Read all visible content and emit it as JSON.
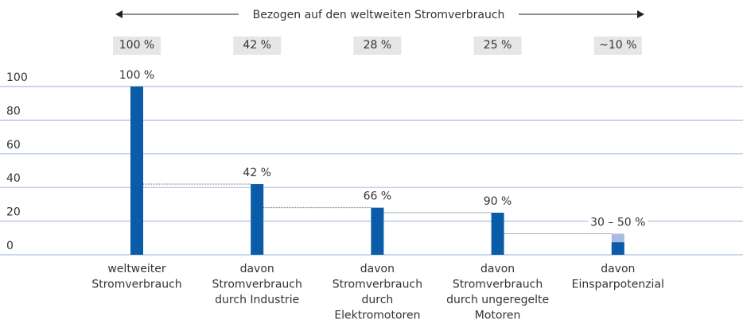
{
  "chart_data": {
    "type": "bar",
    "header": "Bezogen auf den weltweiten Stromverbrauch",
    "global_labels": [
      "100 %",
      "42 %",
      "28 %",
      "25 %",
      "~10 %"
    ],
    "share_labels": [
      "100 %",
      "42 %",
      "66 %",
      "90 %",
      "30 – 50 %"
    ],
    "categories": [
      [
        "weltweiter",
        "Stromverbrauch"
      ],
      [
        "davon",
        "Stromverbrauch",
        "durch Industrie"
      ],
      [
        "davon",
        "Stromverbrauch",
        "durch",
        "Elektromotoren"
      ],
      [
        "davon",
        "Stromverbrauch",
        "durch ungeregelte",
        "Motoren"
      ],
      [
        "davon",
        "Einsparpotenzial"
      ]
    ],
    "series": [
      {
        "color": "#0a5ca8",
        "values": [
          100,
          42,
          28,
          25,
          7.5
        ]
      },
      {
        "color": "#a8bbe0",
        "values": [
          0,
          0,
          0,
          0,
          5
        ]
      }
    ],
    "ylim": [
      0,
      100
    ],
    "yticks": [
      0,
      20,
      40,
      60,
      80,
      100
    ],
    "grid": true,
    "grid_color": "#a9bfe3"
  }
}
